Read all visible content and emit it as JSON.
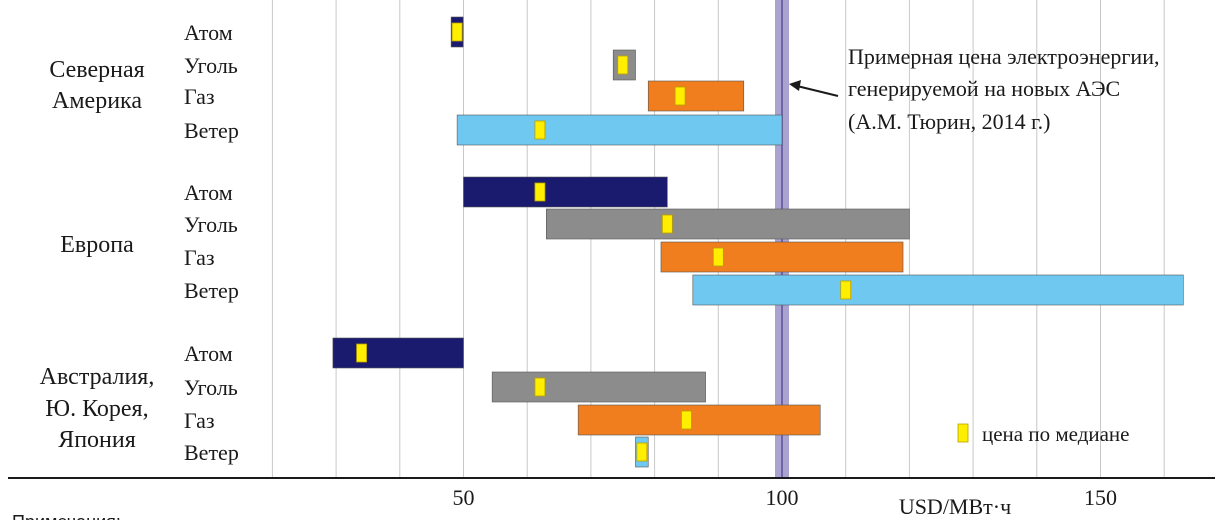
{
  "chart_data": {
    "type": "bar",
    "orientation": "horizontal-range",
    "xlabel": "USD/МВт·ч",
    "x_ticks": [
      50,
      100,
      150
    ],
    "xlim": [
      20,
      165
    ],
    "grid": true,
    "categories": [
      "Атом",
      "Уголь",
      "Газ",
      "Ветер"
    ],
    "colors": {
      "Атом": "#1a1a6e",
      "Уголь": "#8c8c8c",
      "Газ": "#f07d1e",
      "Ветер": "#6ec8f0",
      "median": "#ffee00",
      "reference_band": "#9b93c8"
    },
    "regions": [
      {
        "name": "Северная Америка",
        "label_lines": [
          "Северная",
          "Америка"
        ],
        "bars": [
          {
            "category": "Атом",
            "min": 48.5,
            "max": 49.5,
            "median": 49
          },
          {
            "category": "Уголь",
            "min": 73.5,
            "max": 77,
            "median": 75
          },
          {
            "category": "Газ",
            "min": 79,
            "max": 94,
            "median": 84
          },
          {
            "category": "Ветер",
            "min": 49,
            "max": 100,
            "median": 62
          }
        ]
      },
      {
        "name": "Европа",
        "label_lines": [
          "Европа"
        ],
        "bars": [
          {
            "category": "Атом",
            "min": 50,
            "max": 82,
            "median": 62
          },
          {
            "category": "Уголь",
            "min": 63,
            "max": 120,
            "median": 82
          },
          {
            "category": "Газ",
            "min": 81,
            "max": 119,
            "median": 90
          },
          {
            "category": "Ветер",
            "min": 86,
            "max": 163,
            "median": 110
          }
        ]
      },
      {
        "name": "Австралия, Ю. Корея, Япония",
        "label_lines": [
          "Австралия,",
          "Ю. Корея,",
          "Япония"
        ],
        "bars": [
          {
            "category": "Атом",
            "min": 29.5,
            "max": 50,
            "median": 34
          },
          {
            "category": "Уголь",
            "min": 54.5,
            "max": 88,
            "median": 62
          },
          {
            "category": "Газ",
            "min": 68,
            "max": 106,
            "median": 85
          },
          {
            "category": "Ветер",
            "min": 77,
            "max": 79,
            "median": 78
          }
        ]
      }
    ],
    "reference_line": {
      "value": 100,
      "annotation": [
        "Примерная цена электроэнергии,",
        "генерируемой на новых АЭС",
        "(А.М. Тюрин, 2014 г.)"
      ]
    },
    "legend": {
      "median_label": "цена по медиане",
      "position": "bottom-right"
    },
    "notes_label": "Примечания:"
  }
}
